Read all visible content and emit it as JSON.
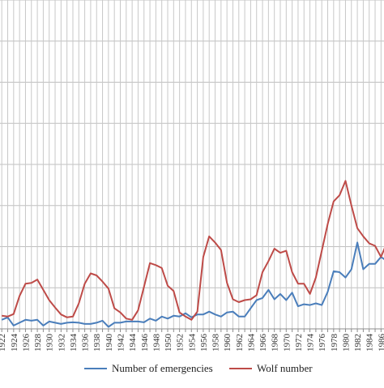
{
  "chart_data": {
    "type": "line",
    "title": "",
    "xlabel": "",
    "ylabel": "",
    "grid": true,
    "legend_position": "bottom",
    "x": [
      1922,
      1923,
      1924,
      1925,
      1926,
      1927,
      1928,
      1929,
      1930,
      1931,
      1932,
      1933,
      1934,
      1935,
      1936,
      1937,
      1938,
      1939,
      1940,
      1941,
      1942,
      1943,
      1944,
      1945,
      1946,
      1947,
      1948,
      1949,
      1950,
      1951,
      1952,
      1953,
      1954,
      1955,
      1956,
      1957,
      1958,
      1959,
      1960,
      1961,
      1962,
      1963,
      1964,
      1965,
      1966,
      1967,
      1968,
      1969,
      1970,
      1971,
      1972,
      1973,
      1974,
      1975,
      1976,
      1977,
      1978,
      1979,
      1980,
      1981,
      1982,
      1983,
      1984,
      1985,
      1986,
      1987
    ],
    "x_tick_labels": [
      "1922",
      "1924",
      "1926",
      "1928",
      "1930",
      "1932",
      "1934",
      "1936",
      "1938",
      "1940",
      "1942",
      "1944",
      "1946",
      "1948",
      "1950",
      "1952",
      "1954",
      "1956",
      "1958",
      "1960",
      "1962",
      "1964",
      "1966",
      "1968",
      "1970",
      "1972",
      "1974",
      "1976",
      "1978",
      "1980",
      "1982",
      "1984",
      "1986"
    ],
    "ylim": [
      0,
      8
    ],
    "series": [
      {
        "name": "Number of emergencies",
        "color": "#4a7ebb",
        "values": [
          0.22,
          0.28,
          0.08,
          0.15,
          0.22,
          0.2,
          0.22,
          0.08,
          0.18,
          0.15,
          0.12,
          0.15,
          0.16,
          0.15,
          0.12,
          0.12,
          0.15,
          0.2,
          0.05,
          0.15,
          0.15,
          0.18,
          0.18,
          0.18,
          0.16,
          0.25,
          0.2,
          0.3,
          0.25,
          0.32,
          0.3,
          0.38,
          0.28,
          0.35,
          0.35,
          0.42,
          0.35,
          0.3,
          0.4,
          0.42,
          0.3,
          0.3,
          0.5,
          0.7,
          0.75,
          0.95,
          0.72,
          0.85,
          0.7,
          0.88,
          0.55,
          0.6,
          0.58,
          0.62,
          0.58,
          0.9,
          1.4,
          1.38,
          1.25,
          1.45,
          2.1,
          1.45,
          1.58,
          1.58,
          1.75,
          1.65
        ]
      },
      {
        "name": "Wolf number",
        "color": "#be4b48",
        "values": [
          0.32,
          0.3,
          0.36,
          0.8,
          1.1,
          1.12,
          1.2,
          0.95,
          0.7,
          0.52,
          0.35,
          0.28,
          0.3,
          0.62,
          1.1,
          1.35,
          1.3,
          1.15,
          0.98,
          0.5,
          0.4,
          0.25,
          0.22,
          0.45,
          1.02,
          1.6,
          1.55,
          1.48,
          1.05,
          0.92,
          0.4,
          0.3,
          0.22,
          0.42,
          1.75,
          2.25,
          2.1,
          1.92,
          1.12,
          0.72,
          0.65,
          0.7,
          0.72,
          0.82,
          1.38,
          1.65,
          1.95,
          1.85,
          1.9,
          1.38,
          1.1,
          1.1,
          0.85,
          1.25,
          1.9,
          2.55,
          3.1,
          3.25,
          3.6,
          3.0,
          2.45,
          2.25,
          2.08,
          2.02,
          1.75,
          2.1
        ]
      }
    ]
  }
}
